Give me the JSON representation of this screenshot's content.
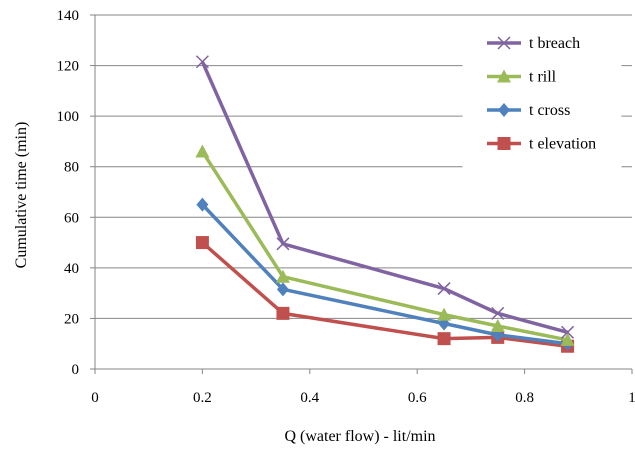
{
  "chart_data": {
    "type": "line",
    "xlabel": "Q (water flow) - lit/min",
    "ylabel": "Cumulative time (min)",
    "xlim": [
      0,
      1
    ],
    "ylim": [
      0,
      140
    ],
    "xticks": [
      0,
      0.2,
      0.4,
      0.6,
      0.8,
      1
    ],
    "xtick_labels": [
      "0",
      "0.2",
      "0.4",
      "0.6",
      "0.8",
      "1"
    ],
    "yticks": [
      0,
      20,
      40,
      60,
      80,
      100,
      120,
      140
    ],
    "ytick_labels": [
      "0",
      "20",
      "40",
      "60",
      "80",
      "100",
      "120",
      "140"
    ],
    "grid": "horizontal",
    "legend_position": "top-right",
    "x": [
      0.2,
      0.35,
      0.65,
      0.75,
      0.88
    ],
    "series": [
      {
        "name": "t breach",
        "values": [
          121.5,
          49.5,
          31.8,
          22,
          14.5
        ],
        "color": "#8064A2",
        "marker": "x"
      },
      {
        "name": "t rill",
        "values": [
          86,
          36.5,
          21.5,
          17,
          11.5
        ],
        "color": "#9BBB59",
        "marker": "triangle"
      },
      {
        "name": "t cross",
        "values": [
          65,
          31.5,
          18,
          13.5,
          10
        ],
        "color": "#4F81BD",
        "marker": "diamond"
      },
      {
        "name": "t elevation",
        "values": [
          50,
          22,
          12,
          12.5,
          9
        ],
        "color": "#C0504D",
        "marker": "square"
      }
    ]
  }
}
